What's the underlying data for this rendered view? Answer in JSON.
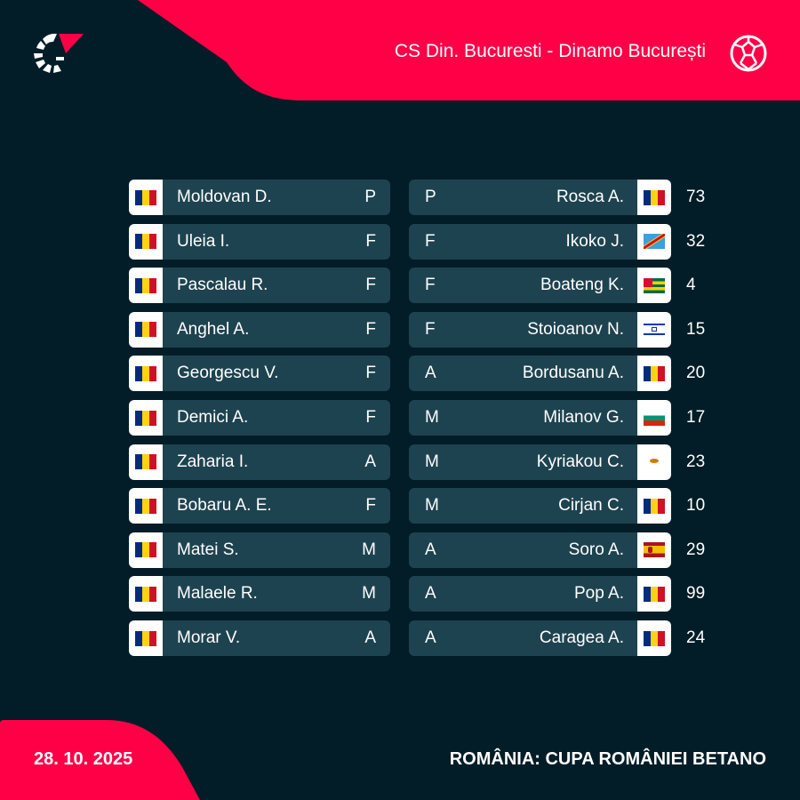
{
  "header": {
    "title": "CS Din. Bucuresti - Dinamo București",
    "logo": "flashscore-logo",
    "sport_icon": "football-icon"
  },
  "footer": {
    "date": "28. 10. 2025",
    "competition": "ROMÂNIA: CUPA ROMÂNIEI BETANO"
  },
  "colors": {
    "background": "#021d28",
    "accent": "#ff0046",
    "card": "#1e4350"
  },
  "home": [
    {
      "name": "Moldovan D.",
      "pos": "P",
      "flag": "romania"
    },
    {
      "name": "Uleia I.",
      "pos": "F",
      "flag": "romania"
    },
    {
      "name": "Pascalau R.",
      "pos": "F",
      "flag": "romania"
    },
    {
      "name": "Anghel A.",
      "pos": "F",
      "flag": "romania"
    },
    {
      "name": "Georgescu V.",
      "pos": "F",
      "flag": "romania"
    },
    {
      "name": "Demici A.",
      "pos": "F",
      "flag": "romania"
    },
    {
      "name": "Zaharia I.",
      "pos": "A",
      "flag": "romania"
    },
    {
      "name": "Bobaru A. E.",
      "pos": "F",
      "flag": "romania"
    },
    {
      "name": "Matei S.",
      "pos": "M",
      "flag": "romania"
    },
    {
      "name": "Malaele R.",
      "pos": "M",
      "flag": "romania"
    },
    {
      "name": "Morar V.",
      "pos": "A",
      "flag": "romania"
    }
  ],
  "away": [
    {
      "name": "Rosca A.",
      "pos": "P",
      "flag": "romania",
      "number": "73"
    },
    {
      "name": "Ikoko J.",
      "pos": "F",
      "flag": "dr-congo",
      "number": "32"
    },
    {
      "name": "Boateng K.",
      "pos": "F",
      "flag": "togo",
      "number": "4"
    },
    {
      "name": "Stoioanov N.",
      "pos": "F",
      "flag": "israel",
      "number": "15"
    },
    {
      "name": "Bordusanu A.",
      "pos": "A",
      "flag": "romania",
      "number": "20"
    },
    {
      "name": "Milanov G.",
      "pos": "M",
      "flag": "bulgaria",
      "number": "17"
    },
    {
      "name": "Kyriakou C.",
      "pos": "M",
      "flag": "cyprus",
      "number": "23"
    },
    {
      "name": "Cirjan C.",
      "pos": "M",
      "flag": "romania",
      "number": "10"
    },
    {
      "name": "Soro A.",
      "pos": "A",
      "flag": "spain",
      "number": "29"
    },
    {
      "name": "Pop A.",
      "pos": "A",
      "flag": "romania",
      "number": "99"
    },
    {
      "name": "Caragea A.",
      "pos": "A",
      "flag": "romania",
      "number": "24"
    }
  ]
}
